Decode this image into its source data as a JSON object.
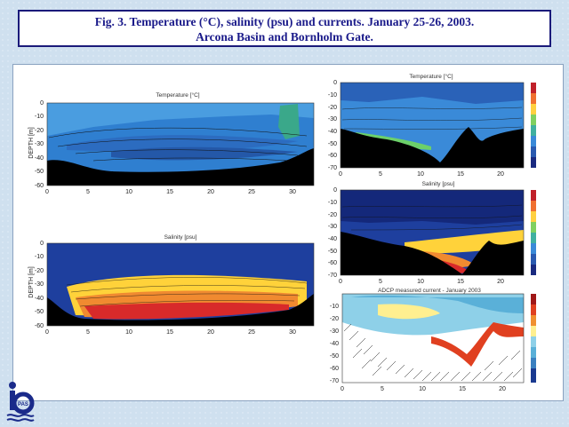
{
  "figure": {
    "title_line1": "Fig. 3. Temperature (°C), salinity (psu) and currents. January 25-26, 2003.",
    "title_line2": "Arcona Basin and Bornholm Gate."
  },
  "panels": {
    "left_temperature": {
      "title": "Temperature [°C]",
      "ylabel": "DEPTH [m]"
    },
    "left_salinity": {
      "title": "Salinity [psu]",
      "ylabel": "DEPTH [m]"
    },
    "right_temperature": {
      "title": "Temperature [°C]"
    },
    "right_salinity": {
      "title": "Salinity [psu]"
    },
    "right_currents": {
      "title": "ADCP measured current - January 2003"
    }
  },
  "axes": {
    "left_x_ticks": [
      "0",
      "5",
      "10",
      "15",
      "20",
      "25",
      "30"
    ],
    "left_y_ticks": [
      "0",
      "-10",
      "-20",
      "-30",
      "-40",
      "-50",
      "-60"
    ],
    "right_x_ticks": [
      "0",
      "5",
      "10",
      "15",
      "20"
    ],
    "right_y_ticks": [
      "0",
      "-10",
      "-20",
      "-30",
      "-40",
      "-50",
      "-60",
      "-70"
    ],
    "adcp_y_ticks": [
      "-10",
      "-20",
      "-30",
      "-40",
      "-50",
      "-60",
      "-70"
    ]
  },
  "logo": {
    "text": "PAS"
  },
  "colors": {
    "title_border": "#1a1a7a",
    "title_text": "#1a1a8a",
    "water_blue": "#2f7fd0",
    "deep_blue": "#1a3a9a",
    "bottom": "#000000"
  }
}
